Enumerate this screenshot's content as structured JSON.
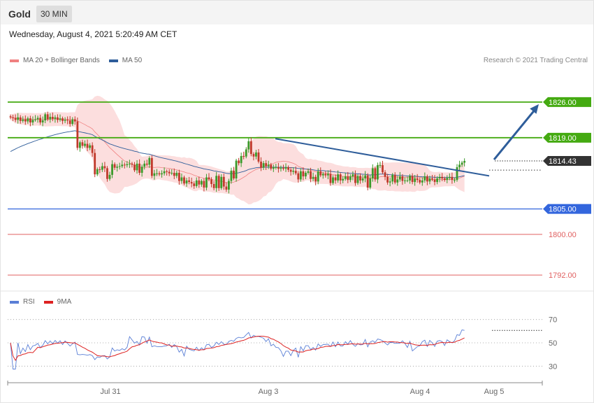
{
  "header": {
    "symbol": "Gold",
    "timeframe": "30 MIN",
    "datetime": "Wednesday, August 4, 2021 5:20:49 AM CET"
  },
  "colors": {
    "up": "#3a9a2a",
    "down": "#c0392b",
    "bollinger_fill": "#fcdede",
    "ma20": "#f08080",
    "ma50": "#2e5d9a",
    "resistance": "#44aa11",
    "support": "#3366dd",
    "target": "#e06060",
    "rsi": "#5a7fd6",
    "rsi_ma": "#dd2222",
    "arrow": "#2e5d9a"
  },
  "legend": {
    "ma20_label": "MA 20 + Bollinger Bands",
    "ma50_label": "MA 50",
    "credit": "Research © 2021 Trading Central"
  },
  "rsi_legend": {
    "rsi_label": "RSI",
    "ma_label": "9MA"
  },
  "chart_data": [
    {
      "type": "candlestick",
      "title": "Gold",
      "x_ticks": [
        "Jul 31",
        "Aug 3",
        "Aug 4",
        "Aug 5"
      ],
      "ylim": [
        1789,
        1833
      ],
      "price_levels": [
        {
          "value": "1826.00",
          "role": "resistance"
        },
        {
          "value": "1819.00",
          "role": "resistance"
        },
        {
          "value": "1814.43",
          "role": "last"
        },
        {
          "value": "1805.00",
          "role": "support"
        },
        {
          "value": "1800.00",
          "role": "target"
        },
        {
          "value": "1792.00",
          "role": "target"
        }
      ],
      "close_series": [
        1823.0,
        1822.9,
        1822.5,
        1823.0,
        1822.3,
        1822.6,
        1822.2,
        1822.8,
        1822.0,
        1822.5,
        1822.6,
        1822.9,
        1822.0,
        1822.4,
        1823.6,
        1822.6,
        1823.1,
        1822.7,
        1823.0,
        1822.5,
        1822.8,
        1822.3,
        1822.5,
        1822.4,
        1821.7,
        1822.6,
        1822.2,
        1817.0,
        1818.1,
        1817.4,
        1817.8,
        1817.0,
        1817.5,
        1816.0,
        1811.8,
        1812.8,
        1812.7,
        1813.4,
        1813.0,
        1810.9,
        1811.7,
        1813.8,
        1813.1,
        1813.3,
        1813.4,
        1813.7,
        1813.6,
        1813.8,
        1813.9,
        1813.7,
        1812.6,
        1813.9,
        1812.1,
        1813.3,
        1813.9,
        1813.7,
        1815.0,
        1811.5,
        1812.0,
        1812.0,
        1811.8,
        1812.0,
        1812.4,
        1812.3,
        1812.0,
        1812.1,
        1811.5,
        1812.1,
        1810.5,
        1811.2,
        1810.0,
        1810.6,
        1810.3,
        1810.0,
        1809.5,
        1810.6,
        1809.8,
        1810.5,
        1809.2,
        1811.2,
        1810.8,
        1809.9,
        1809.1,
        1811.5,
        1809.1,
        1811.3,
        1809.4,
        1808.8,
        1810.5,
        1812.5,
        1811.0,
        1814.5,
        1814.0,
        1815.4,
        1815.3,
        1816.7,
        1818.3,
        1815.8,
        1815.3,
        1816.1,
        1814.3,
        1813.1,
        1814.0,
        1813.4,
        1813.7,
        1812.9,
        1813.2,
        1813.2,
        1812.9,
        1813.1,
        1812.9,
        1813.2,
        1812.7,
        1812.3,
        1812.5,
        1812.0,
        1810.8,
        1812.4,
        1811.4,
        1812.1,
        1812.4,
        1810.9,
        1811.3,
        1810.4,
        1812.4,
        1811.6,
        1811.9,
        1811.6,
        1811.9,
        1810.1,
        1811.2,
        1810.6,
        1811.8,
        1810.6,
        1810.9,
        1811.4,
        1810.7,
        1811.4,
        1811.8,
        1810.1,
        1811.5,
        1810.6,
        1811.0,
        1811.6,
        1809.2,
        1811.0,
        1813.0,
        1810.8,
        1813.6,
        1813.6,
        1812.2,
        1811.3,
        1810.2,
        1810.4,
        1811.7,
        1810.2,
        1810.8,
        1811.4,
        1810.5,
        1810.6,
        1810.6,
        1811.5,
        1810.3,
        1811.0,
        1810.7,
        1810.2,
        1810.6,
        1811.4,
        1810.4,
        1811.0,
        1810.8,
        1810.3,
        1811.0,
        1811.3,
        1811.0,
        1810.7,
        1811.1,
        1811.3,
        1810.7,
        1810.7,
        1813.2,
        1813.7,
        1814.1,
        1814.43
      ],
      "ma50_start": 1816.0,
      "trendline": {
        "from_close": 1818.8,
        "to_close": 1811.5
      },
      "projection_target": "1826.00"
    },
    {
      "type": "line",
      "title": "RSI",
      "ylim": [
        20,
        80
      ],
      "y_ticks": [
        "70",
        "50",
        "30"
      ],
      "series": [
        {
          "name": "RSI",
          "from": 56,
          "to": 67
        },
        {
          "name": "9MA",
          "from": 57,
          "to": 55
        }
      ]
    }
  ]
}
